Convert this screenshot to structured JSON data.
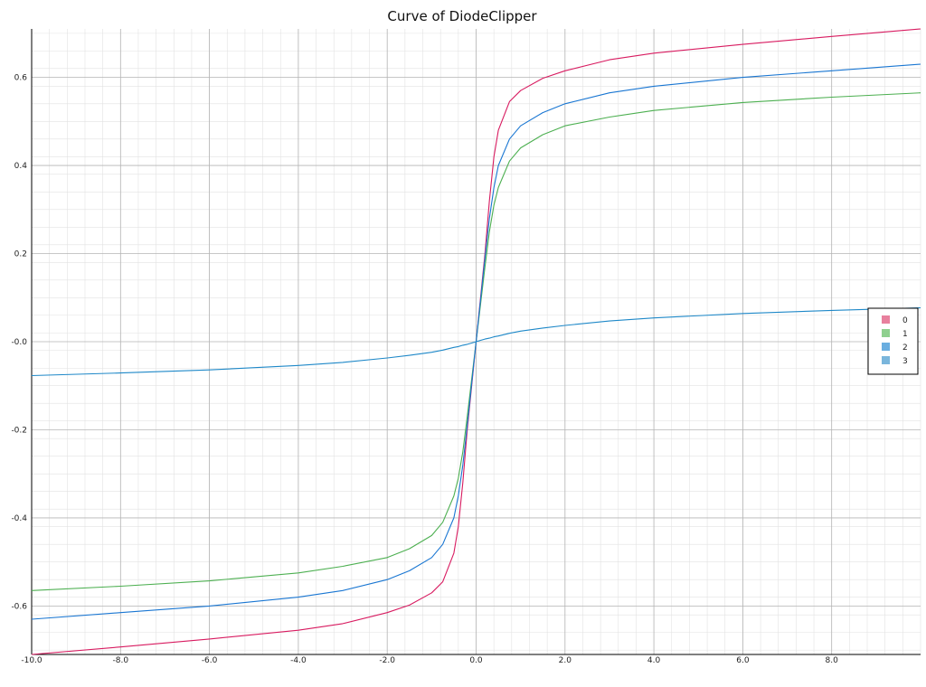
{
  "chart_data": {
    "type": "line",
    "title": "Curve of DiodeClipper",
    "xlabel": "",
    "ylabel": "",
    "xlim": [
      -10.0,
      10.0
    ],
    "ylim": [
      -0.71,
      0.71
    ],
    "x_ticks": [
      -10.0,
      -8.0,
      -6.0,
      -4.0,
      -2.0,
      0.0,
      2.0,
      4.0,
      6.0,
      8.0
    ],
    "x_tick_labels": [
      "-10.0",
      "-8.0",
      "-6.0",
      "-4.0",
      "-2.0",
      "0.0",
      "2.0",
      "4.0",
      "6.0",
      "8.0"
    ],
    "y_ticks": [
      -0.6,
      -0.4,
      -0.2,
      0.0,
      0.2,
      0.4,
      0.6
    ],
    "y_tick_labels": [
      "-0.6",
      "-0.4",
      "-0.2",
      "-0.0",
      "0.2",
      "0.4",
      "0.6"
    ],
    "grid": true,
    "legend_position": "right",
    "x": [
      -10,
      -8,
      -6,
      -4,
      -3,
      -2,
      -1.5,
      -1,
      -0.75,
      -0.5,
      -0.4,
      -0.3,
      -0.2,
      -0.1,
      0,
      0.1,
      0.2,
      0.3,
      0.4,
      0.5,
      0.75,
      1,
      1.5,
      2,
      3,
      4,
      6,
      8,
      10
    ],
    "series": [
      {
        "name": "0",
        "color": "#d81b60",
        "values": [
          -0.71,
          -0.693,
          -0.675,
          -0.655,
          -0.64,
          -0.615,
          -0.598,
          -0.57,
          -0.545,
          -0.48,
          -0.42,
          -0.32,
          -0.2,
          -0.1,
          0,
          0.1,
          0.2,
          0.32,
          0.42,
          0.48,
          0.545,
          0.57,
          0.598,
          0.615,
          0.64,
          0.655,
          0.675,
          0.693,
          0.71
        ]
      },
      {
        "name": "1",
        "color": "#4caf50",
        "values": [
          -0.565,
          -0.555,
          -0.543,
          -0.525,
          -0.51,
          -0.49,
          -0.47,
          -0.44,
          -0.41,
          -0.35,
          -0.31,
          -0.25,
          -0.17,
          -0.085,
          0,
          0.085,
          0.17,
          0.25,
          0.31,
          0.35,
          0.41,
          0.44,
          0.47,
          0.49,
          0.51,
          0.525,
          0.543,
          0.555,
          0.565
        ]
      },
      {
        "name": "2",
        "color": "#1976d2",
        "values": [
          -0.63,
          -0.615,
          -0.6,
          -0.58,
          -0.565,
          -0.54,
          -0.52,
          -0.49,
          -0.46,
          -0.4,
          -0.35,
          -0.28,
          -0.19,
          -0.095,
          0,
          0.095,
          0.19,
          0.28,
          0.35,
          0.4,
          0.46,
          0.49,
          0.52,
          0.54,
          0.565,
          0.58,
          0.6,
          0.615,
          0.63
        ]
      },
      {
        "name": "3",
        "color": "#1e88c8",
        "values": [
          -0.077,
          -0.071,
          -0.064,
          -0.054,
          -0.047,
          -0.037,
          -0.031,
          -0.024,
          -0.019,
          -0.013,
          -0.011,
          -0.008,
          -0.006,
          -0.003,
          0,
          0.003,
          0.006,
          0.008,
          0.011,
          0.013,
          0.019,
          0.024,
          0.031,
          0.037,
          0.047,
          0.054,
          0.064,
          0.071,
          0.077
        ]
      }
    ],
    "legend_swatch_colors": [
      "#e8809e",
      "#8fd08f",
      "#6aaee0",
      "#7ab6dc"
    ]
  }
}
